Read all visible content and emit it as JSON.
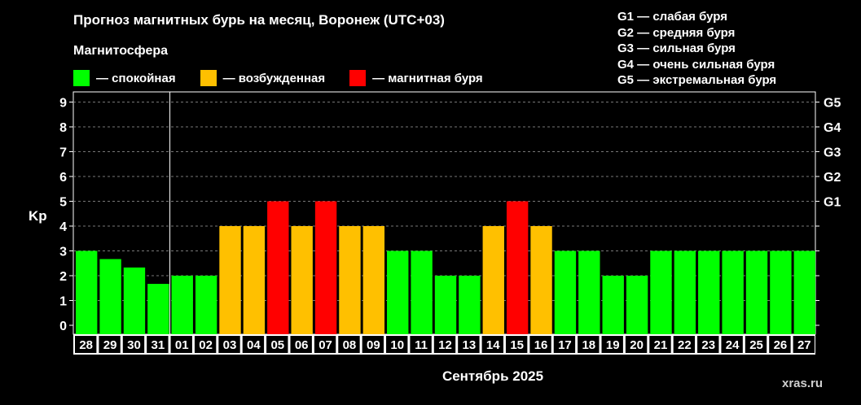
{
  "chart_data": {
    "type": "bar",
    "title": "Прогноз магнитных бурь на месяц, Воронеж (UTC+03)",
    "legend_title": "Магнитосфера",
    "legend": [
      {
        "label": "— спокойная",
        "color": "#00ff00"
      },
      {
        "label": "— возбужденная",
        "color": "#ffc000"
      },
      {
        "label": "— магнитная буря",
        "color": "#ff0000"
      }
    ],
    "g_legend": [
      "G1 — слабая буря",
      "G2 — средняя буря",
      "G3 — сильная буря",
      "G4 — очень сильная буря",
      "G5 — экстремальная буря"
    ],
    "ylabel": "Kp",
    "xlabel": "Сентябрь 2025",
    "ylim": [
      0,
      9
    ],
    "yticks": [
      "0",
      "1",
      "2",
      "3",
      "4",
      "5",
      "6",
      "7",
      "8",
      "9"
    ],
    "right_ticks": [
      {
        "label": "G1",
        "value": 5
      },
      {
        "label": "G2",
        "value": 6
      },
      {
        "label": "G3",
        "value": 7
      },
      {
        "label": "G4",
        "value": 8
      },
      {
        "label": "G5",
        "value": 9
      }
    ],
    "grid": true,
    "categories": [
      "28",
      "29",
      "30",
      "31",
      "01",
      "02",
      "03",
      "04",
      "05",
      "06",
      "07",
      "08",
      "09",
      "10",
      "11",
      "12",
      "13",
      "14",
      "15",
      "16",
      "17",
      "18",
      "19",
      "20",
      "21",
      "22",
      "23",
      "24",
      "25",
      "26",
      "27"
    ],
    "values": [
      3,
      2.67,
      2.33,
      1.67,
      2,
      2,
      4,
      4,
      5,
      4,
      5,
      4,
      4,
      3,
      3,
      2,
      2,
      4,
      5,
      4,
      3,
      3,
      2,
      2,
      3,
      3,
      3,
      3,
      3,
      3,
      3
    ],
    "colors": {
      "calm": "#00ff00",
      "active": "#ffc000",
      "storm": "#ff0000"
    },
    "month_divider_after": "31"
  },
  "watermark": "xras.ru"
}
